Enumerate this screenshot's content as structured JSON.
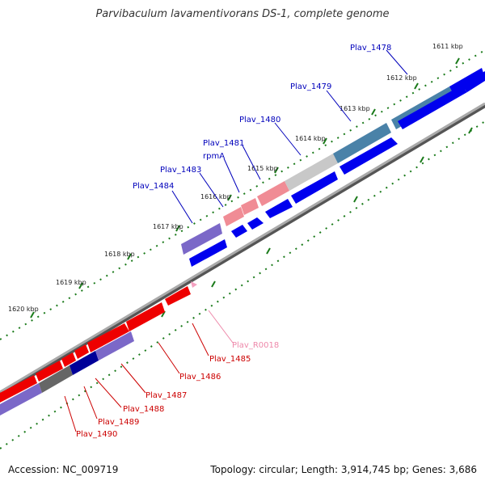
{
  "title": "Parvibaculum lavamentivorans DS-1, complete genome",
  "footer": {
    "accession": "Accession: NC_009719",
    "summary": "Topology: circular; Length: 3,914,745 bp; Genes: 3,686"
  },
  "colors": {
    "forward_gene": "#0000ee",
    "reverse_gene": "#ee0000",
    "forward_label": "#0000bb",
    "reverse_label": "#cc0000",
    "rna_label": "#ee88aa",
    "tick": "#1a7a1a",
    "backbone": "#888888"
  },
  "ticks": [
    "1611 kbp",
    "1612 kbp",
    "1613 kbp",
    "1614 kbp",
    "1615 kbp",
    "1616 kbp",
    "1617 kbp",
    "1618 kbp",
    "1619 kbp",
    "1620 kbp"
  ],
  "forward_labels": [
    "Plav_1478",
    "Plav_1479",
    "Plav_1480",
    "Plav_1481",
    "rpmA",
    "Plav_1483",
    "Plav_1484"
  ],
  "reverse_labels": [
    "Plav_R0018",
    "Plav_1485",
    "Plav_1486",
    "Plav_1487",
    "Plav_1488",
    "Plav_1489",
    "Plav_1490"
  ]
}
